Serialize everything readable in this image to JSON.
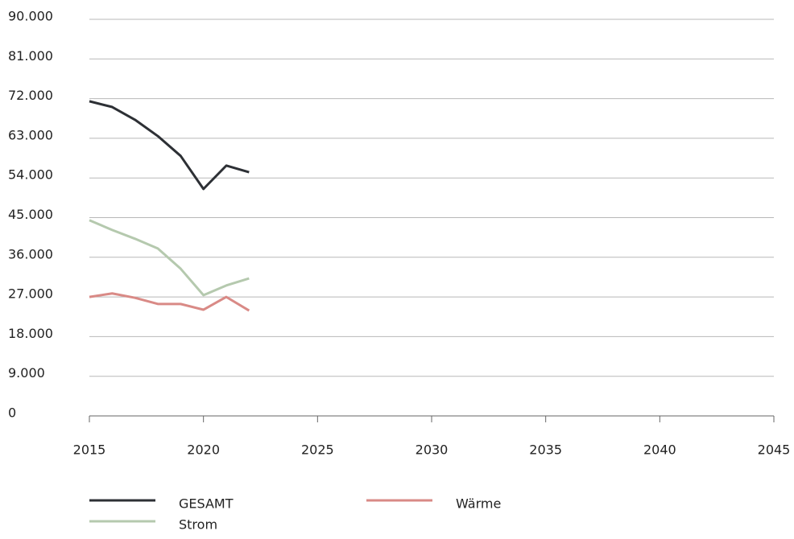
{
  "chart_data": {
    "type": "line",
    "x": [
      2015,
      2016,
      2017,
      2018,
      2019,
      2020,
      2021,
      2022
    ],
    "series": [
      {
        "name": "GESAMT",
        "color": "#2d3035",
        "values": [
          71400,
          70100,
          67200,
          63500,
          59000,
          51500,
          56800,
          55300
        ]
      },
      {
        "name": "Strom",
        "color": "#b5c9ae",
        "values": [
          44400,
          42200,
          40200,
          38000,
          33400,
          27400,
          29600,
          31200
        ]
      },
      {
        "name": "Wärme",
        "color": "#d98a86",
        "values": [
          27000,
          27800,
          26800,
          25400,
          25400,
          24100,
          27000,
          23900
        ]
      }
    ],
    "xlim": [
      2015,
      2045
    ],
    "xticks": [
      2015,
      2020,
      2025,
      2030,
      2035,
      2040,
      2045
    ],
    "ylim": [
      0,
      90000
    ],
    "yticks": [
      0,
      {
        "value": 9000,
        "label": "9.000"
      },
      {
        "value": 18000,
        "label": "18.000"
      },
      {
        "value": 27000,
        "label": "27.000"
      },
      {
        "value": 36000,
        "label": "36.000"
      },
      {
        "value": 45000,
        "label": "45.000"
      },
      {
        "value": 54000,
        "label": "54.000"
      },
      {
        "value": 63000,
        "label": "63.000"
      },
      {
        "value": 72000,
        "label": "72.000"
      },
      {
        "value": 81000,
        "label": "81.000"
      },
      {
        "value": 90000,
        "label": "90.000"
      }
    ],
    "grid": true
  }
}
